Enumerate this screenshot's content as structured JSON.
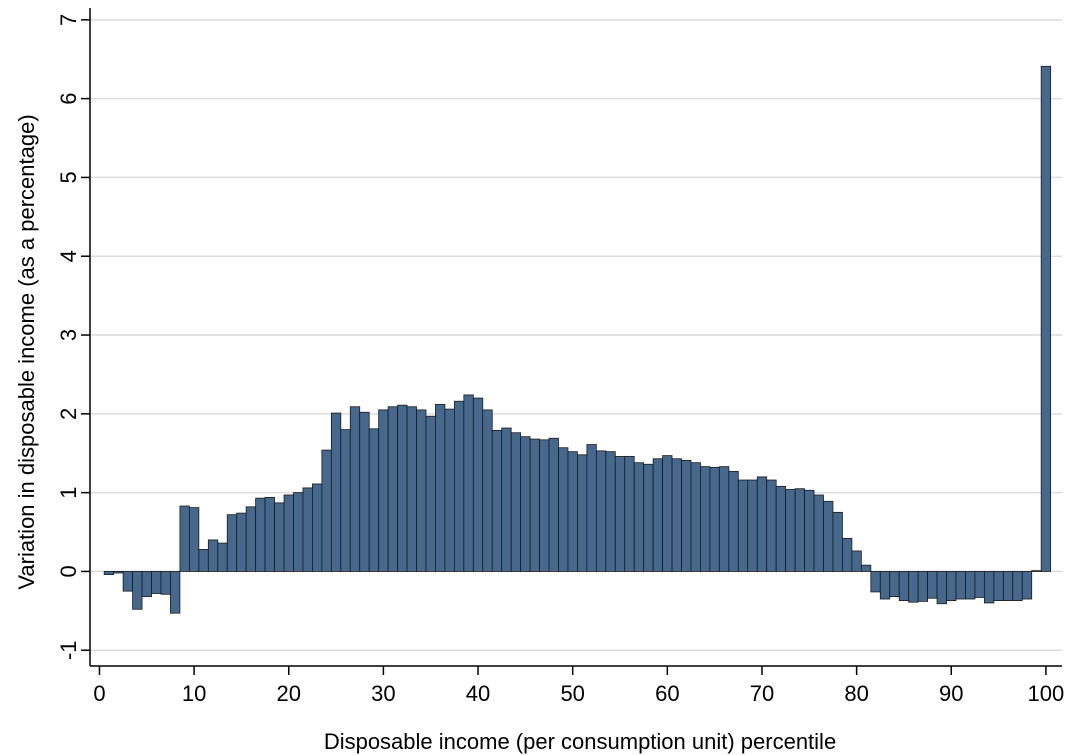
{
  "chart_data": {
    "type": "bar",
    "xlabel": "Disposable income (per consumption unit) percentile",
    "ylabel": "Variation in disposable income (as a percentage)",
    "xlim": [
      -1,
      101.7
    ],
    "ylim": [
      -1.2,
      7.15
    ],
    "xticks": [
      0,
      10,
      20,
      30,
      40,
      50,
      60,
      70,
      80,
      90,
      100
    ],
    "yticks": [
      -1,
      0,
      1,
      2,
      3,
      4,
      5,
      6,
      7
    ],
    "grid": true,
    "bar_color": "#46688c",
    "grid_color": "#dcdcdc",
    "x": [
      1,
      2,
      3,
      4,
      5,
      6,
      7,
      8,
      9,
      10,
      11,
      12,
      13,
      14,
      15,
      16,
      17,
      18,
      19,
      20,
      21,
      22,
      23,
      24,
      25,
      26,
      27,
      28,
      29,
      30,
      31,
      32,
      33,
      34,
      35,
      36,
      37,
      38,
      39,
      40,
      41,
      42,
      43,
      44,
      45,
      46,
      47,
      48,
      49,
      50,
      51,
      52,
      53,
      54,
      55,
      56,
      57,
      58,
      59,
      60,
      61,
      62,
      63,
      64,
      65,
      66,
      67,
      68,
      69,
      70,
      71,
      72,
      73,
      74,
      75,
      76,
      77,
      78,
      79,
      80,
      81,
      82,
      83,
      84,
      85,
      86,
      87,
      88,
      89,
      90,
      91,
      92,
      93,
      94,
      95,
      96,
      97,
      98,
      99,
      100
    ],
    "values": [
      -0.04,
      -0.02,
      -0.25,
      -0.48,
      -0.32,
      -0.28,
      -0.29,
      -0.53,
      0.83,
      0.81,
      0.28,
      0.4,
      0.36,
      0.72,
      0.74,
      0.82,
      0.93,
      0.94,
      0.87,
      0.97,
      1.0,
      1.06,
      1.11,
      1.54,
      2.01,
      1.8,
      2.09,
      2.02,
      1.81,
      2.05,
      2.09,
      2.11,
      2.09,
      2.05,
      1.97,
      2.12,
      2.06,
      2.16,
      2.24,
      2.2,
      2.05,
      1.79,
      1.82,
      1.76,
      1.71,
      1.68,
      1.67,
      1.69,
      1.57,
      1.52,
      1.48,
      1.61,
      1.53,
      1.52,
      1.46,
      1.46,
      1.38,
      1.36,
      1.43,
      1.47,
      1.43,
      1.41,
      1.38,
      1.33,
      1.32,
      1.33,
      1.27,
      1.16,
      1.16,
      1.2,
      1.16,
      1.08,
      1.04,
      1.05,
      1.03,
      0.97,
      0.89,
      0.75,
      0.42,
      0.26,
      0.08,
      -0.26,
      -0.35,
      -0.32,
      -0.37,
      -0.39,
      -0.38,
      -0.34,
      -0.41,
      -0.37,
      -0.35,
      -0.35,
      -0.33,
      -0.4,
      -0.37,
      -0.37,
      -0.37,
      -0.35,
      0.01,
      6.41
    ]
  }
}
